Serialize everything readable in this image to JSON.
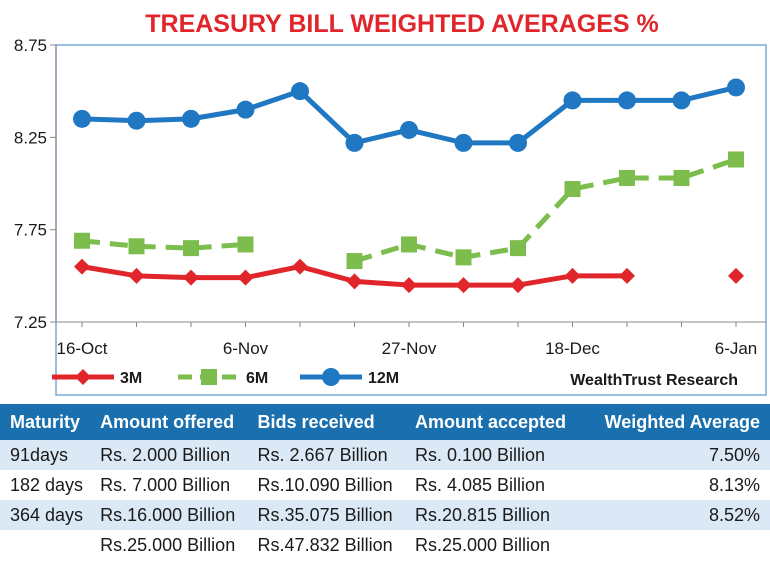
{
  "chart_data": {
    "type": "line",
    "title": "TREASURY BILL WEIGHTED AVERAGES %",
    "x_tick_labels": [
      "16-Oct",
      "6-Nov",
      "27-Nov",
      "18-Dec",
      "6-Jan"
    ],
    "x_tick_index": [
      0,
      3,
      6,
      9,
      12
    ],
    "ylim": [
      7.25,
      8.75
    ],
    "y_ticks": [
      "7.25",
      "7.75",
      "8.25",
      "8.75"
    ],
    "y_tick_values": [
      7.25,
      7.75,
      8.25,
      8.75
    ],
    "grid": false,
    "legend_position": "bottom-left",
    "source": "WealthTrust Research",
    "series": [
      {
        "name": "3M",
        "color": "#e0262b",
        "style": "solid",
        "marker": "diamond",
        "values": [
          7.55,
          7.5,
          7.49,
          7.49,
          7.55,
          7.47,
          7.45,
          7.45,
          7.45,
          7.5,
          7.5,
          null,
          7.5
        ]
      },
      {
        "name": "6M",
        "color": "#7cbd4e",
        "style": "dashed",
        "marker": "square",
        "values": [
          7.69,
          7.66,
          7.65,
          7.67,
          null,
          7.58,
          7.67,
          7.6,
          7.65,
          7.97,
          8.03,
          8.03,
          8.13
        ]
      },
      {
        "name": "12M",
        "color": "#1f78c1",
        "style": "solid",
        "marker": "circle",
        "values": [
          8.35,
          8.34,
          8.35,
          8.4,
          8.5,
          8.22,
          8.29,
          8.22,
          8.22,
          8.45,
          8.45,
          8.45,
          8.52
        ]
      }
    ]
  },
  "table": {
    "headers": [
      "Maturity",
      "Amount offered",
      "Bids received",
      "Amount accepted",
      "Weighted Average"
    ],
    "rows": [
      [
        "91days",
        "Rs. 2.000 Billion",
        "Rs.  2.667 Billion",
        "Rs.  0.100 Billion",
        "7.50%"
      ],
      [
        "182 days",
        "Rs.  7.000 Billion",
        "Rs.10.090 Billion",
        "Rs.  4.085 Billion",
        "8.13%"
      ],
      [
        "364 days",
        "Rs.16.000 Billion",
        "Rs.35.075 Billion",
        "Rs.20.815 Billion",
        "8.52%"
      ],
      [
        "",
        "Rs.25.000 Billion",
        "Rs.47.832 Billion",
        "Rs.25.000 Billion",
        ""
      ]
    ]
  }
}
